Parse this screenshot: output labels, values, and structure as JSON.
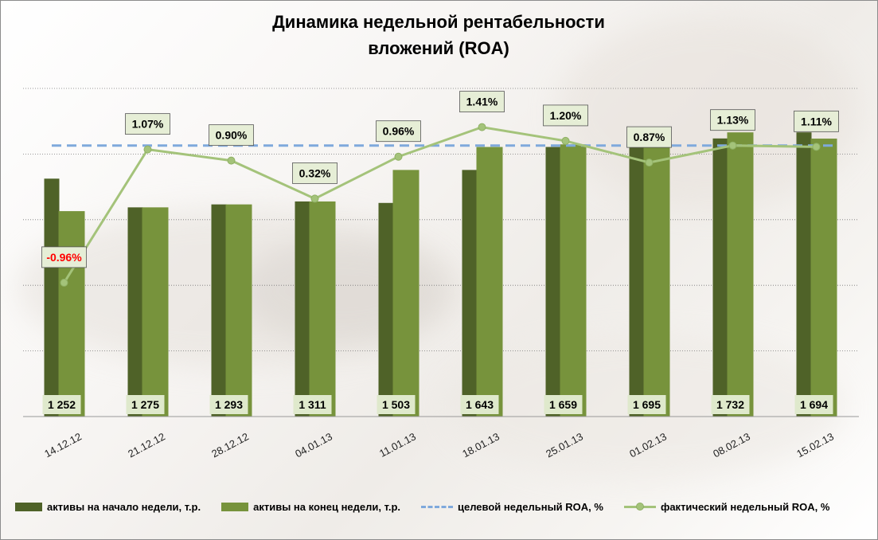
{
  "chart_data": {
    "type": "bar+line",
    "title_lines": [
      "Динамика недельной рентабельности",
      "вложений (ROA)"
    ],
    "categories": [
      "14.12.12",
      "21.12.12",
      "28.12.12",
      "04.01.13",
      "11.01.13",
      "18.01.13",
      "25.01.13",
      "01.02.13",
      "08.02.13",
      "15.02.13"
    ],
    "series": [
      {
        "name": "активы на начало  недели, т.р.",
        "kind": "bar",
        "color": "#4f6228",
        "values": [
          1450,
          1275,
          1293,
          1311,
          1302,
          1503,
          1643,
          1659,
          1695,
          1732
        ]
      },
      {
        "name": "активы на конец недели, т.р.",
        "kind": "bar",
        "color": "#77933c",
        "values": [
          1252,
          1275,
          1293,
          1311,
          1503,
          1643,
          1659,
          1695,
          1732,
          1694
        ],
        "labels": [
          "1 252",
          "1 275",
          "1 293",
          "1 311",
          "1 503",
          "1 643",
          "1 659",
          "1 695",
          "1 732",
          "1 694"
        ]
      },
      {
        "name": "целевой недельный ROA, %",
        "kind": "dashed-line",
        "color": "#7fa9dc",
        "value": 1.13
      },
      {
        "name": "фактический недельный ROA, %",
        "kind": "line",
        "color": "#a4c37a",
        "values": [
          -0.96,
          1.07,
          0.9,
          0.32,
          0.96,
          1.41,
          1.2,
          0.87,
          1.13,
          1.11
        ],
        "labels": [
          "-0.96%",
          "1.07%",
          "0.90%",
          "0.32%",
          "0.96%",
          "1.41%",
          "1.20%",
          "0.87%",
          "1.13%",
          "1.11%"
        ]
      }
    ],
    "bar_axis_range": [
      0,
      2000
    ],
    "roa_axis_range": [
      -3.0,
      2.0
    ],
    "gridlines": true,
    "legend_position": "bottom"
  }
}
